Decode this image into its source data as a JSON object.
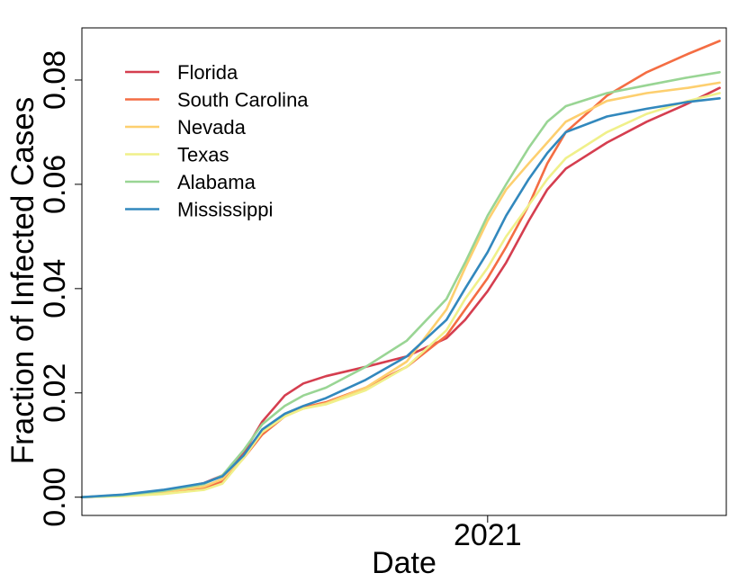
{
  "chart_data": {
    "type": "line",
    "title": "",
    "xlabel": "Date",
    "ylabel": "Fraction of Infected Cases",
    "x_axis": {
      "type": "date",
      "range": [
        "2020-03-01",
        "2021-06-30"
      ],
      "ticks": [
        {
          "value": "2021-01-01",
          "label": "2021"
        }
      ]
    },
    "y_axis": {
      "range": [
        -0.0035,
        0.09
      ],
      "ticks": [
        {
          "value": 0.0,
          "label": "0.00"
        },
        {
          "value": 0.02,
          "label": "0.02"
        },
        {
          "value": 0.04,
          "label": "0.04"
        },
        {
          "value": 0.06,
          "label": "0.06"
        },
        {
          "value": 0.08,
          "label": "0.08"
        }
      ]
    },
    "grid": false,
    "legend": {
      "placement": "top-left",
      "frame": false
    },
    "series": [
      {
        "name": "Florida",
        "color": "#d53e4f",
        "x": [
          "2020-03-01",
          "2020-04-01",
          "2020-05-01",
          "2020-06-01",
          "2020-06-15",
          "2020-07-01",
          "2020-07-15",
          "2020-08-01",
          "2020-08-15",
          "2020-09-01",
          "2020-10-01",
          "2020-11-01",
          "2020-12-01",
          "2020-12-15",
          "2021-01-01",
          "2021-01-15",
          "2021-02-01",
          "2021-02-15",
          "2021-03-01",
          "2021-04-01",
          "2021-05-01",
          "2021-06-01",
          "2021-06-25"
        ],
        "y": [
          0.0,
          0.0003,
          0.0012,
          0.0027,
          0.0042,
          0.0085,
          0.0145,
          0.0195,
          0.0218,
          0.0232,
          0.025,
          0.027,
          0.0305,
          0.034,
          0.0395,
          0.045,
          0.053,
          0.059,
          0.063,
          0.068,
          0.072,
          0.0755,
          0.0785
        ]
      },
      {
        "name": "South Carolina",
        "color": "#f46d43",
        "x": [
          "2020-03-01",
          "2020-04-01",
          "2020-05-01",
          "2020-06-01",
          "2020-06-15",
          "2020-07-01",
          "2020-07-15",
          "2020-08-01",
          "2020-08-15",
          "2020-09-01",
          "2020-10-01",
          "2020-11-01",
          "2020-12-01",
          "2020-12-15",
          "2021-01-01",
          "2021-01-15",
          "2021-02-01",
          "2021-02-15",
          "2021-03-01",
          "2021-04-01",
          "2021-05-01",
          "2021-06-01",
          "2021-06-25"
        ],
        "y": [
          0.0,
          0.0003,
          0.0008,
          0.0017,
          0.003,
          0.0075,
          0.012,
          0.0155,
          0.0172,
          0.0182,
          0.021,
          0.025,
          0.031,
          0.036,
          0.042,
          0.048,
          0.056,
          0.064,
          0.07,
          0.077,
          0.0815,
          0.085,
          0.0875
        ]
      },
      {
        "name": "Nevada",
        "color": "#fdcf6f",
        "x": [
          "2020-03-01",
          "2020-04-01",
          "2020-05-01",
          "2020-06-01",
          "2020-06-15",
          "2020-07-01",
          "2020-07-15",
          "2020-08-01",
          "2020-08-15",
          "2020-09-01",
          "2020-10-01",
          "2020-11-01",
          "2020-12-01",
          "2020-12-15",
          "2021-01-01",
          "2021-01-15",
          "2021-02-01",
          "2021-02-15",
          "2021-03-01",
          "2021-04-01",
          "2021-05-01",
          "2021-06-01",
          "2021-06-25"
        ],
        "y": [
          0.0,
          0.0004,
          0.001,
          0.002,
          0.0035,
          0.008,
          0.0125,
          0.0155,
          0.017,
          0.018,
          0.021,
          0.026,
          0.036,
          0.044,
          0.053,
          0.059,
          0.064,
          0.068,
          0.072,
          0.076,
          0.0775,
          0.0785,
          0.0795
        ]
      },
      {
        "name": "Texas",
        "color": "#f0f08a",
        "x": [
          "2020-03-01",
          "2020-04-01",
          "2020-05-01",
          "2020-06-01",
          "2020-06-15",
          "2020-07-01",
          "2020-07-15",
          "2020-08-01",
          "2020-08-15",
          "2020-09-01",
          "2020-10-01",
          "2020-11-01",
          "2020-12-01",
          "2020-12-15",
          "2021-01-01",
          "2021-01-15",
          "2021-02-01",
          "2021-02-15",
          "2021-03-01",
          "2021-04-01",
          "2021-05-01",
          "2021-06-01",
          "2021-06-25"
        ],
        "y": [
          0.0,
          0.0002,
          0.0006,
          0.0014,
          0.0026,
          0.0075,
          0.0125,
          0.0155,
          0.017,
          0.0178,
          0.0205,
          0.025,
          0.032,
          0.038,
          0.044,
          0.05,
          0.056,
          0.061,
          0.065,
          0.07,
          0.0735,
          0.076,
          0.0775
        ]
      },
      {
        "name": "Alabama",
        "color": "#99d594",
        "x": [
          "2020-03-01",
          "2020-04-01",
          "2020-05-01",
          "2020-06-01",
          "2020-06-15",
          "2020-07-01",
          "2020-07-15",
          "2020-08-01",
          "2020-08-15",
          "2020-09-01",
          "2020-10-01",
          "2020-11-01",
          "2020-12-01",
          "2020-12-15",
          "2021-01-01",
          "2021-01-15",
          "2021-02-01",
          "2021-02-15",
          "2021-03-01",
          "2021-04-01",
          "2021-05-01",
          "2021-06-01",
          "2021-06-25"
        ],
        "y": [
          0.0,
          0.0004,
          0.0012,
          0.0025,
          0.0042,
          0.009,
          0.014,
          0.0175,
          0.0195,
          0.021,
          0.025,
          0.03,
          0.038,
          0.045,
          0.054,
          0.06,
          0.067,
          0.072,
          0.075,
          0.0775,
          0.079,
          0.0805,
          0.0815
        ]
      },
      {
        "name": "Mississippi",
        "color": "#3288bd",
        "x": [
          "2020-03-01",
          "2020-04-01",
          "2020-05-01",
          "2020-06-01",
          "2020-06-15",
          "2020-07-01",
          "2020-07-15",
          "2020-08-01",
          "2020-08-15",
          "2020-09-01",
          "2020-10-01",
          "2020-11-01",
          "2020-12-01",
          "2020-12-15",
          "2021-01-01",
          "2021-01-15",
          "2021-02-01",
          "2021-02-15",
          "2021-03-01",
          "2021-04-01",
          "2021-05-01",
          "2021-06-01",
          "2021-06-25"
        ],
        "y": [
          0.0,
          0.0005,
          0.0014,
          0.0027,
          0.004,
          0.008,
          0.013,
          0.016,
          0.0175,
          0.019,
          0.0225,
          0.027,
          0.034,
          0.04,
          0.047,
          0.054,
          0.061,
          0.066,
          0.07,
          0.073,
          0.0745,
          0.0758,
          0.0765
        ]
      }
    ]
  }
}
